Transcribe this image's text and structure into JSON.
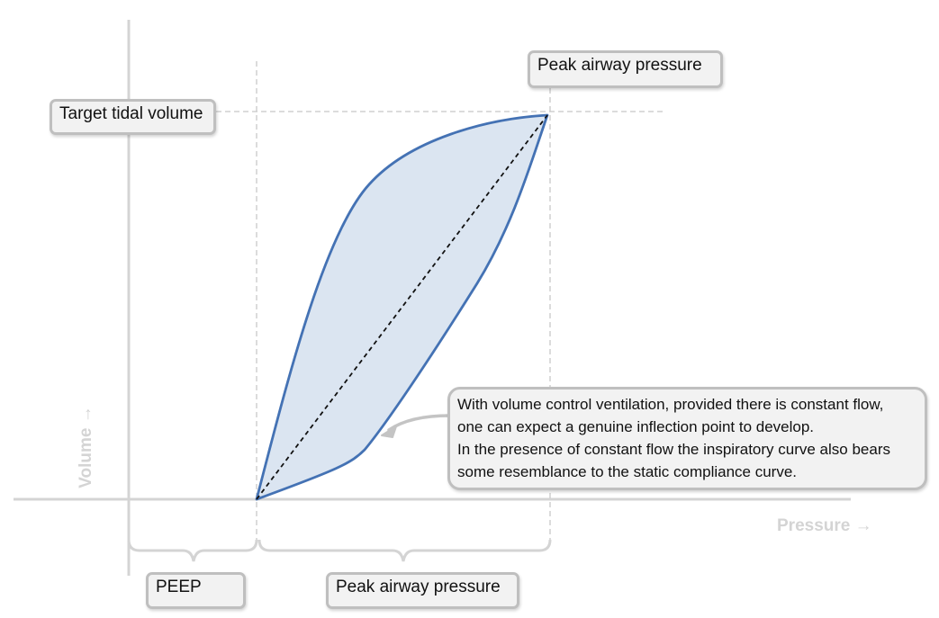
{
  "labels": {
    "target_tidal_volume": "Target tidal volume",
    "peak_airway_pressure_top": "Peak airway pressure",
    "peep": "PEEP",
    "peak_airway_pressure_bottom": "Peak airway pressure"
  },
  "axes": {
    "y_title": "Volume →",
    "x_title": "Pressure →"
  },
  "note": {
    "lines": [
      "With volume control ventilation, provided there is constant flow,",
      "one can expect a genuine inflection point to develop.",
      "In the presence of constant flow the inspiratory curve also bears",
      "some resemblance to the static compliance curve."
    ]
  },
  "colors": {
    "curve": "#4472b4",
    "fill": "#dbe5f1",
    "axis": "#d4d4d4",
    "guide": "#c8c8c8",
    "box_border": "#bfbfbf",
    "box_fill": "#f2f2f2"
  }
}
